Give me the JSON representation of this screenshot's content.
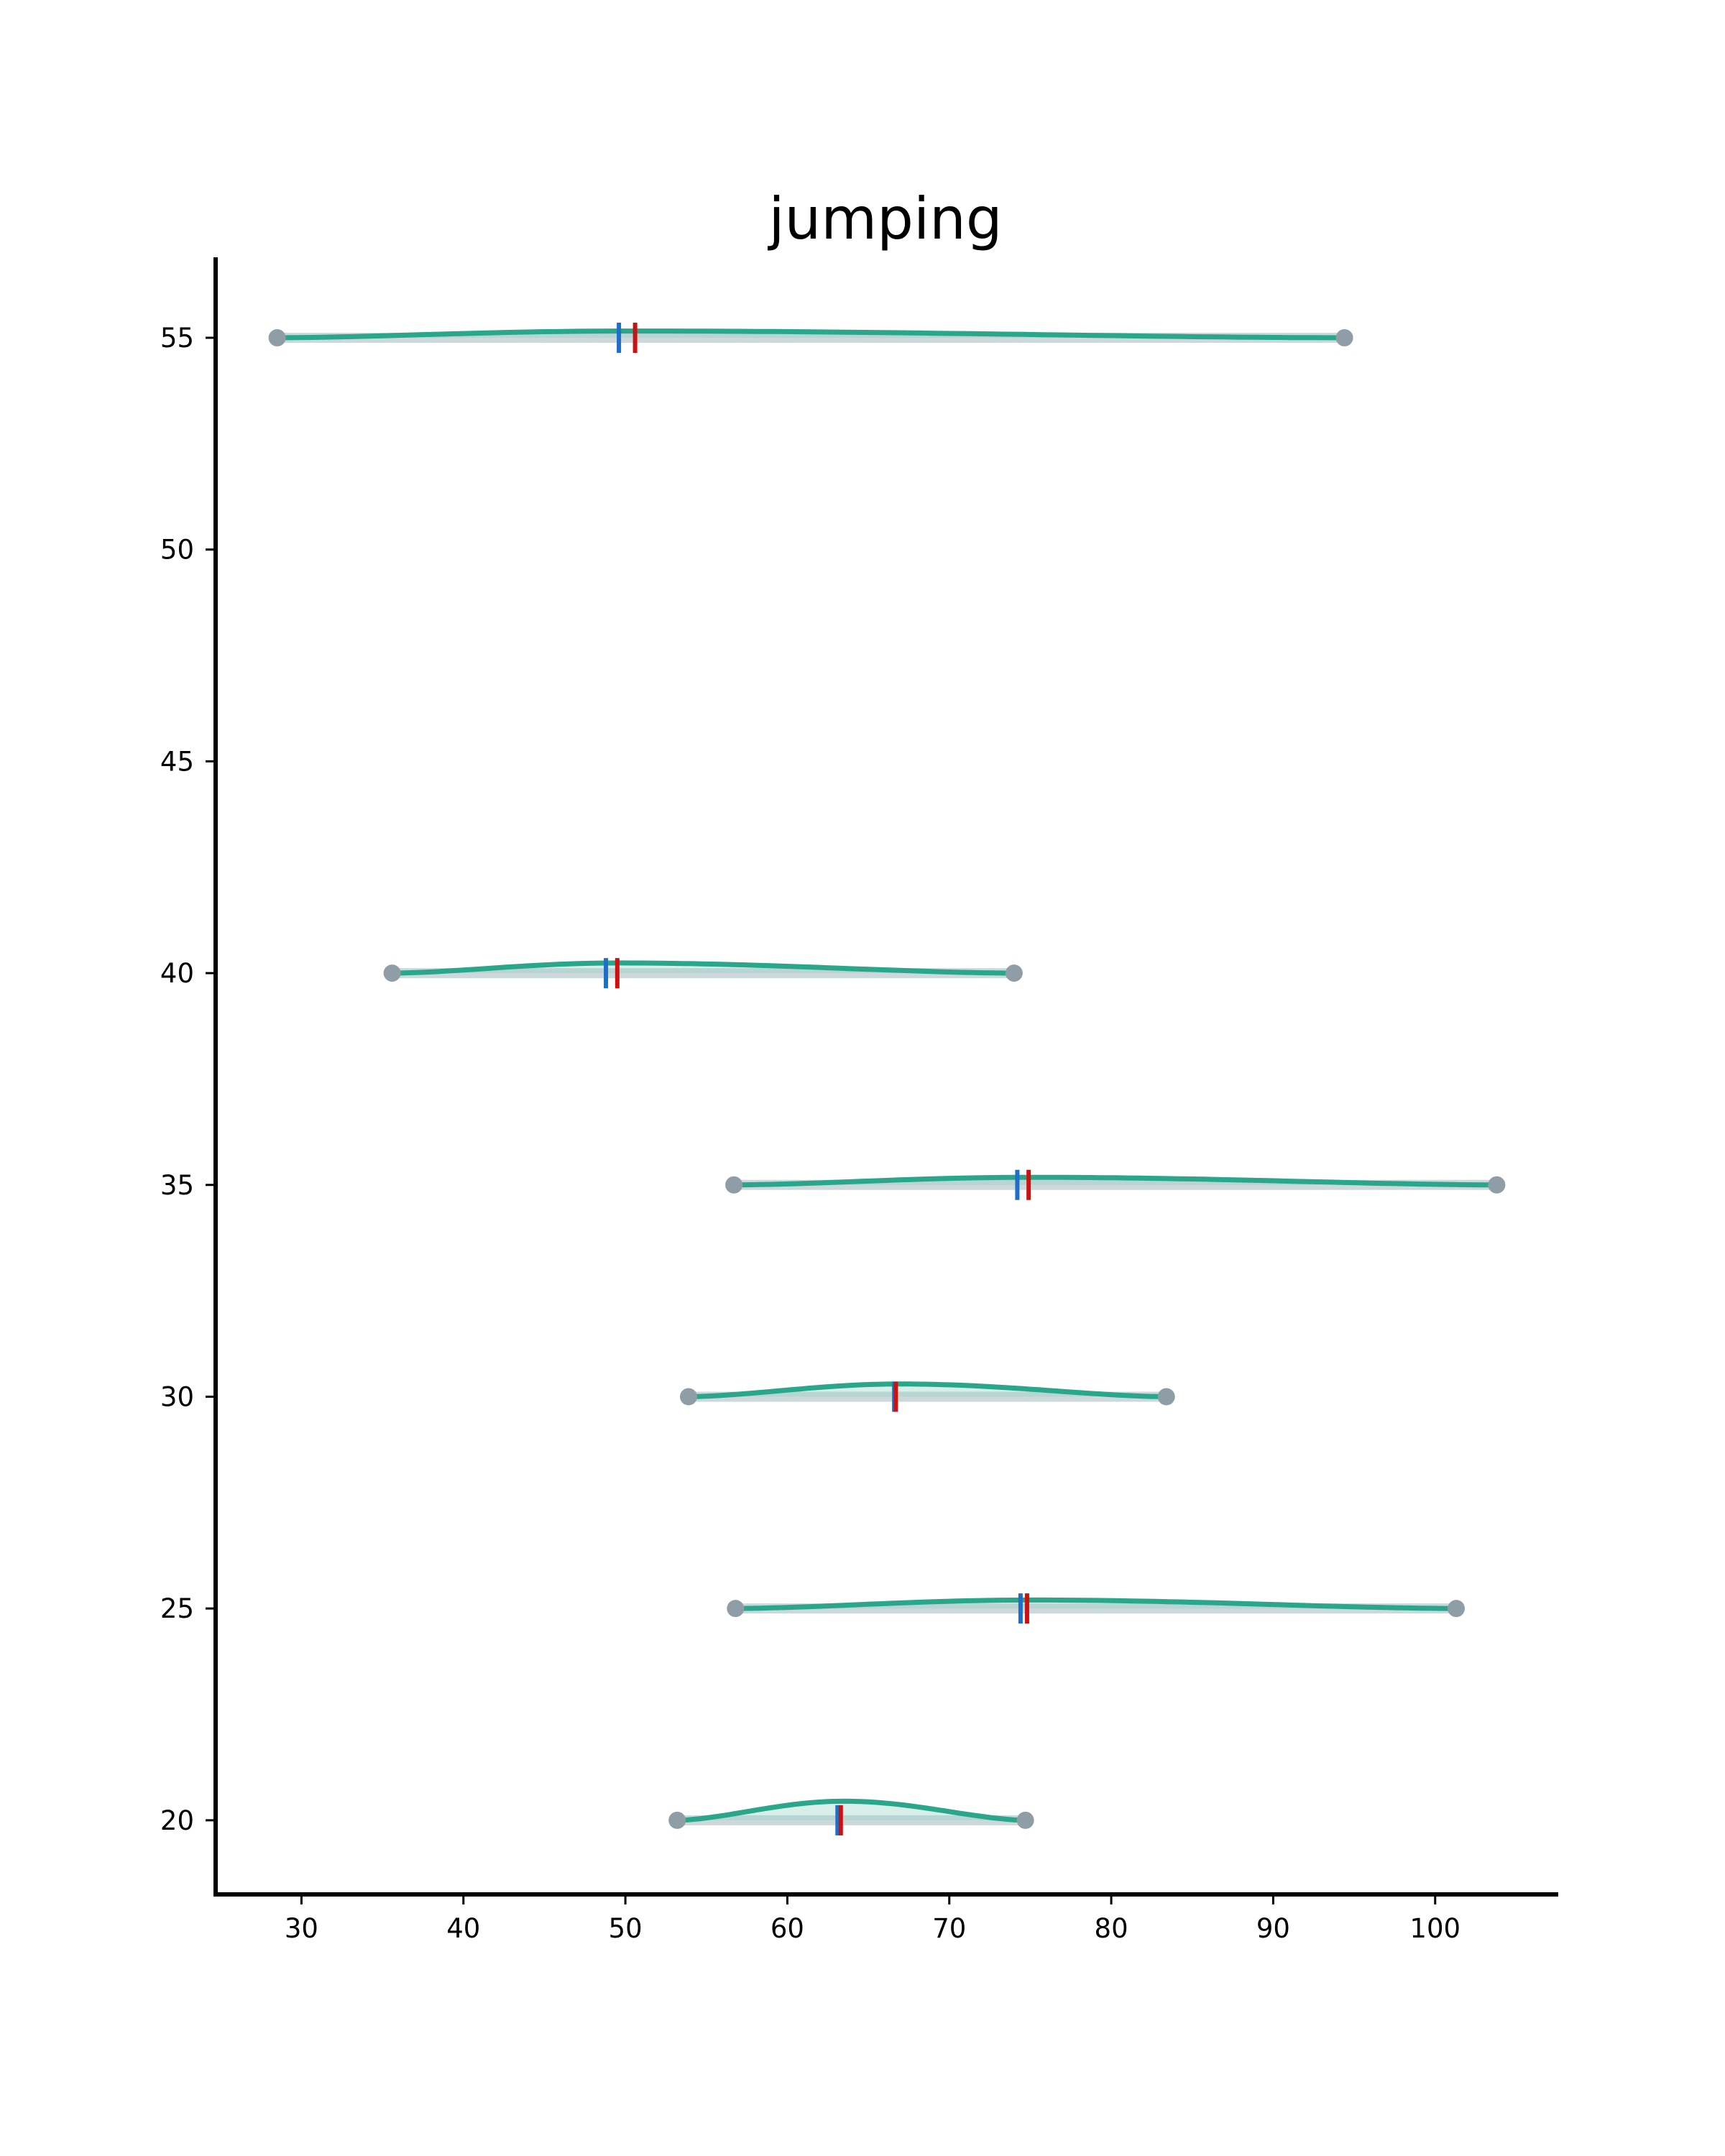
{
  "chart_data": {
    "type": "violin",
    "title": "jumping",
    "xlabel": "",
    "ylabel": "",
    "xlim": [
      24.7,
      107.6
    ],
    "ylim": [
      18.25,
      56.9
    ],
    "xticks": [
      30,
      40,
      50,
      60,
      70,
      80,
      90,
      100
    ],
    "yticks": [
      20,
      25,
      30,
      35,
      40,
      45,
      50,
      55
    ],
    "grid": false,
    "legend": "none",
    "colors": {
      "violin_line": "#2aa68a",
      "violin_fill": "#8fd1c1",
      "range_bar": "#cdd8dc",
      "endpoint": "#8f9ea6",
      "mean_marker": "#1f6fc9",
      "median_marker": "#cc1111",
      "axis": "#000000"
    },
    "groups": [
      {
        "y": 20,
        "min": 53.2,
        "max": 74.7,
        "mean": 63.1,
        "median": 63.3,
        "peak": 63.5,
        "density_height": 0.45
      },
      {
        "y": 25,
        "min": 56.8,
        "max": 101.3,
        "mean": 74.4,
        "median": 74.8,
        "peak": 75.0,
        "density_height": 0.2
      },
      {
        "y": 30,
        "min": 53.9,
        "max": 83.4,
        "mean": 66.6,
        "median": 66.7,
        "peak": 67.0,
        "density_height": 0.3
      },
      {
        "y": 35,
        "min": 56.7,
        "max": 103.8,
        "mean": 74.2,
        "median": 74.9,
        "peak": 75.0,
        "density_height": 0.18
      },
      {
        "y": 40,
        "min": 35.6,
        "max": 74.0,
        "mean": 48.8,
        "median": 49.5,
        "peak": 49.5,
        "density_height": 0.24
      },
      {
        "y": 55,
        "min": 28.5,
        "max": 94.4,
        "mean": 49.6,
        "median": 50.6,
        "peak": 50.0,
        "density_height": 0.16
      }
    ]
  }
}
